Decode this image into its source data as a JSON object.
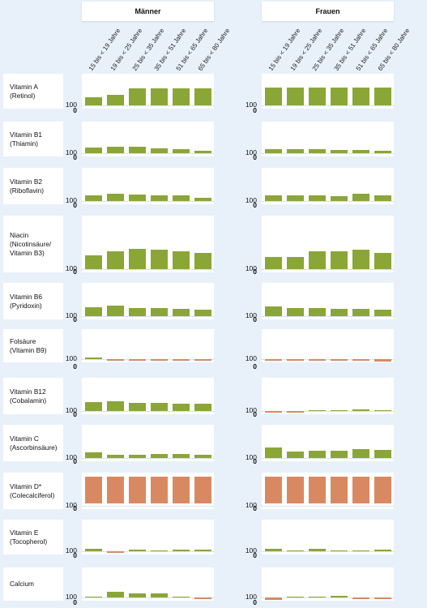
{
  "chart_data": {
    "type": "bar",
    "panels": [
      "Männer",
      "Frauen"
    ],
    "categories": [
      "15 bis < 19 Jahre",
      "19 bis < 25 Jahre",
      "25 bis < 35 Jahre",
      "35 bis < 51 Jahre",
      "51 bis < 65 Jahre",
      "65 bis < 80 Jahre"
    ],
    "reference_tick": "100",
    "zero_tick": "0",
    "colors": {
      "above": "#8aa637",
      "below": "#d98962"
    },
    "nutrients": [
      {
        "lines": [
          "Vitamin A",
          "(Retinol)"
        ],
        "ref": 100,
        "maenner": [
          130,
          140,
          170,
          170,
          170,
          170
        ],
        "frauen": [
          172,
          172,
          172,
          172,
          172,
          172
        ]
      },
      {
        "lines": [
          "Vitamin B1",
          "(Thiamin)"
        ],
        "ref": 100,
        "maenner": [
          120,
          122,
          125,
          116,
          112,
          106
        ],
        "frauen": [
          114,
          114,
          114,
          110,
          110,
          104
        ]
      },
      {
        "lines": [
          "Vitamin B2",
          "(Riboflavin)"
        ],
        "ref": 100,
        "maenner": [
          118,
          128,
          122,
          118,
          118,
          108
        ],
        "frauen": [
          118,
          120,
          120,
          116,
          128,
          118
        ]
      },
      {
        "lines": [
          "Niacin",
          "(Nicotinsäure/",
          "Vitamin B3)"
        ],
        "ref": 100,
        "maenner": [
          155,
          175,
          185,
          182,
          172,
          165
        ],
        "frauen": [
          148,
          150,
          172,
          172,
          180,
          165
        ]
      },
      {
        "lines": [
          "Vitamin B6",
          "(Pyridoxin)"
        ],
        "ref": 100,
        "maenner": [
          135,
          140,
          130,
          130,
          127,
          125
        ],
        "frauen": [
          138,
          130,
          132,
          128,
          128,
          122
        ]
      },
      {
        "lines": [
          "Folsäure",
          "(Vitamin B9)"
        ],
        "ref": 100,
        "maenner": [
          101,
          98,
          96,
          98,
          96,
          93
        ],
        "frauen": [
          93,
          92,
          93,
          92,
          93,
          91
        ]
      },
      {
        "lines": [
          "Vitamin B12",
          "(Cobalamin)"
        ],
        "ref": 100,
        "maenner": [
          133,
          138,
          132,
          130,
          128,
          127
        ],
        "frauen": [
          96,
          96,
          100,
          100,
          102,
          100
        ]
      },
      {
        "lines": [
          "Vitamin C",
          "(Ascorbinsäure)"
        ],
        "ref": 100,
        "maenner": [
          120,
          110,
          108,
          112,
          112,
          110
        ],
        "frauen": [
          142,
          125,
          128,
          128,
          134,
          132
        ]
      },
      {
        "lines": [
          "Vitamin D*",
          "(Colecalciferol)"
        ],
        "ref": 100,
        "maenner": [
          10,
          10,
          10,
          10,
          10,
          10
        ],
        "frauen": [
          10,
          10,
          10,
          10,
          10,
          10
        ]
      },
      {
        "lines": [
          "Vitamin E",
          "(Tocopherol)"
        ],
        "ref": 100,
        "maenner": [
          104,
          98,
          102,
          100,
          102,
          102
        ],
        "frauen": [
          104,
          100,
          104,
          100,
          100,
          102
        ]
      },
      {
        "lines": [
          "Calcium"
        ],
        "ref": 100,
        "maenner": [
          100,
          118,
          114,
          112,
          100,
          94
        ],
        "frauen": [
          88,
          100,
          100,
          102,
          98,
          95
        ]
      }
    ]
  }
}
